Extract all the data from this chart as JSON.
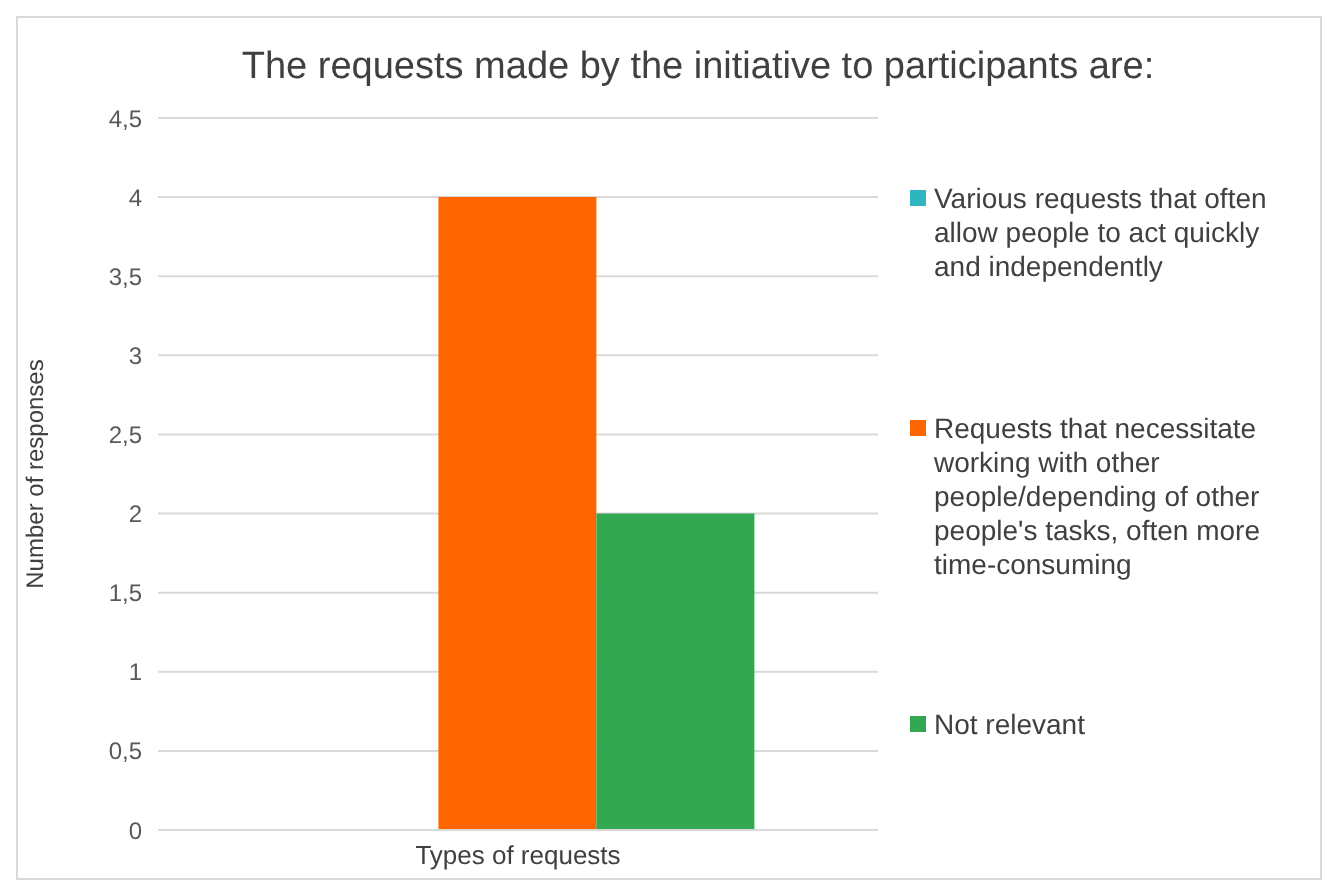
{
  "chart_data": {
    "type": "bar",
    "title": "The requests made by the initiative to participants are:",
    "ylabel": "Number of responses",
    "categories": [
      "Types of requests"
    ],
    "series": [
      {
        "name": "Various requests that often allow people to act quickly and independently",
        "color": "#2eb5c0",
        "values": [
          0
        ]
      },
      {
        "name": "Requests that necessitate working with other people/depending of other people's tasks, often more time-consuming",
        "color": "#ff6600",
        "values": [
          4
        ]
      },
      {
        "name": "Not relevant",
        "color": "#33a853",
        "values": [
          2
        ]
      }
    ],
    "ylim": [
      0,
      4.5
    ],
    "yticks": [
      0,
      {
        "value": 0.5,
        "label": "0,5"
      },
      1,
      {
        "value": 1.5,
        "label": "1,5"
      },
      2,
      {
        "value": 2.5,
        "label": "2,5"
      },
      3,
      {
        "value": 3.5,
        "label": "3,5"
      },
      4,
      {
        "value": 4.5,
        "label": "4,5"
      }
    ],
    "grid": "y",
    "legend": "right"
  }
}
